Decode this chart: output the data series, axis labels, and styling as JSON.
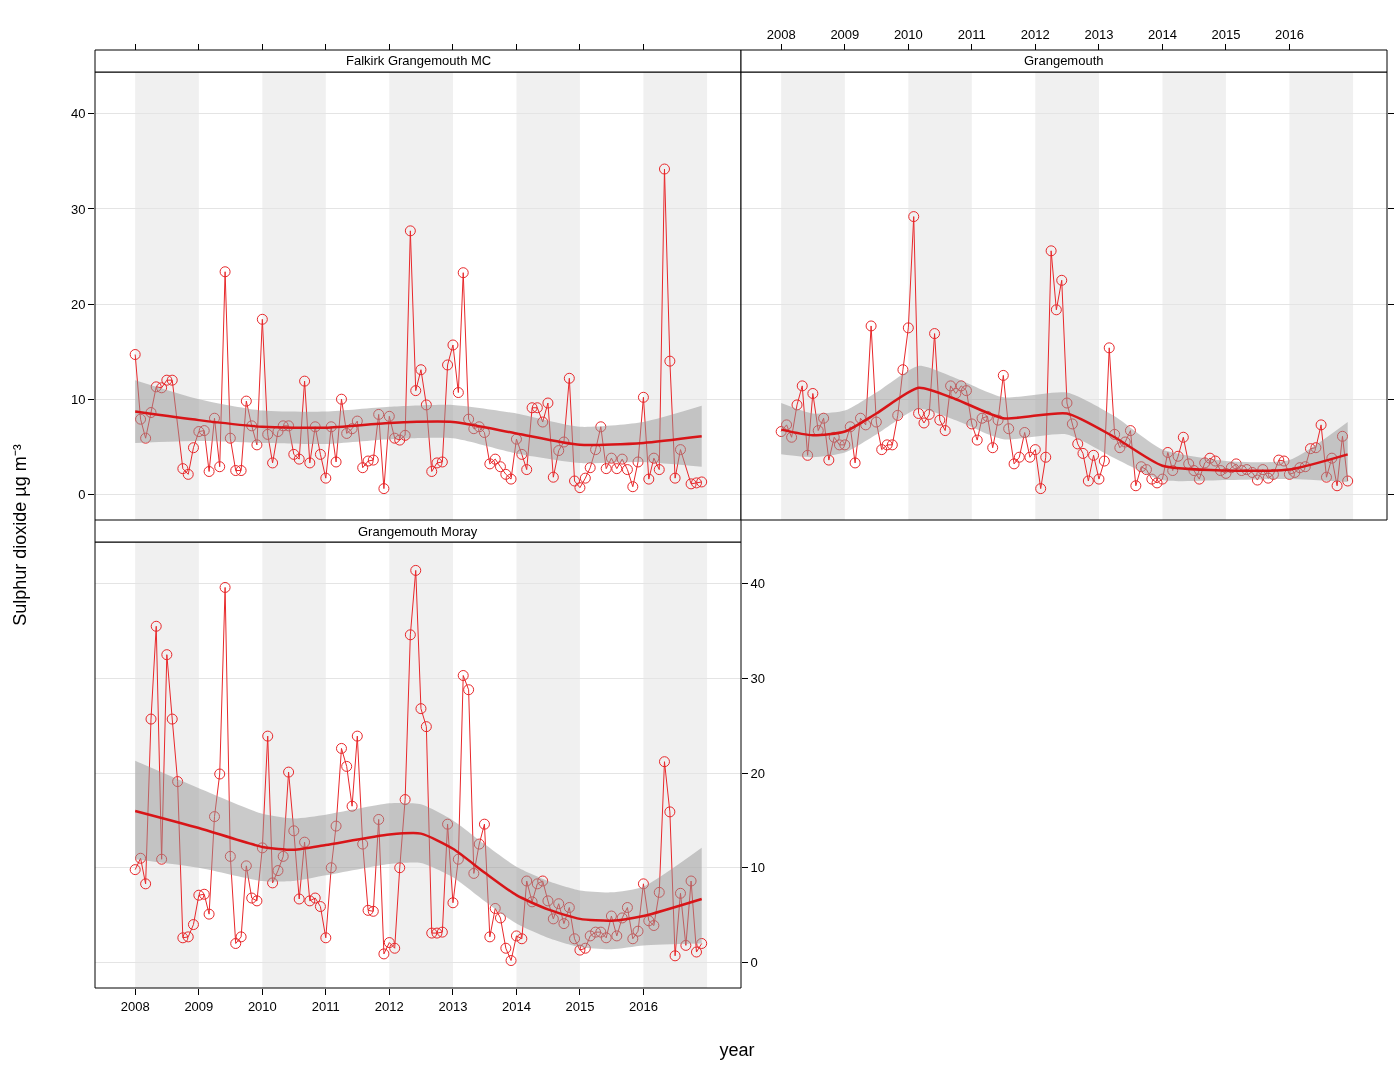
{
  "chart_data": [
    {
      "type": "line",
      "title": "Falkirk Grangemouth MC",
      "ylabel": "Sulphur dioxide µg m⁻³",
      "grid": "y",
      "tick_labels": "y",
      "xlim": [
        "2007-05-15",
        "2017-07-15"
      ],
      "xticks": [
        "2008",
        "2009",
        "2010",
        "2011",
        "2012",
        "2013",
        "2014",
        "2015",
        "2016"
      ],
      "ylim": [
        -2.7,
        44.4
      ],
      "yticks": [
        0,
        10,
        20,
        30,
        40
      ],
      "bands": [
        {
          "axis": "x",
          "from": "2008",
          "to": "2009",
          "color": "#f0f0f0"
        },
        {
          "axis": "x",
          "from": "2010",
          "to": "2011",
          "color": "#f0f0f0"
        },
        {
          "axis": "x",
          "from": "2012",
          "to": "2013",
          "color": "#f0f0f0"
        },
        {
          "axis": "x",
          "from": "2014",
          "to": "2015",
          "color": "#f0f0f0"
        },
        {
          "axis": "x",
          "from": "2016",
          "to": "2017",
          "color": "#f0f0f0"
        }
      ],
      "x": [
        "2008-01",
        "2008-02",
        "2008-03",
        "2008-04",
        "2008-05",
        "2008-06",
        "2008-07",
        "2008-08",
        "2008-09",
        "2008-10",
        "2008-11",
        "2008-12",
        "2009-01",
        "2009-02",
        "2009-03",
        "2009-04",
        "2009-05",
        "2009-06",
        "2009-07",
        "2009-08",
        "2009-09",
        "2009-10",
        "2009-11",
        "2009-12",
        "2010-01",
        "2010-02",
        "2010-03",
        "2010-04",
        "2010-05",
        "2010-06",
        "2010-07",
        "2010-08",
        "2010-09",
        "2010-10",
        "2010-11",
        "2010-12",
        "2011-01",
        "2011-02",
        "2011-03",
        "2011-04",
        "2011-05",
        "2011-06",
        "2011-07",
        "2011-08",
        "2011-09",
        "2011-10",
        "2011-11",
        "2011-12",
        "2012-01",
        "2012-02",
        "2012-03",
        "2012-04",
        "2012-05",
        "2012-06",
        "2012-07",
        "2012-08",
        "2012-09",
        "2012-10",
        "2012-11",
        "2012-12",
        "2013-01",
        "2013-02",
        "2013-03",
        "2013-04",
        "2013-05",
        "2013-06",
        "2013-07",
        "2013-08",
        "2013-09",
        "2013-10",
        "2013-11",
        "2013-12",
        "2014-01",
        "2014-02",
        "2014-03",
        "2014-04",
        "2014-05",
        "2014-06",
        "2014-07",
        "2014-08",
        "2014-09",
        "2014-10",
        "2014-11",
        "2014-12",
        "2015-01",
        "2015-02",
        "2015-03",
        "2015-04",
        "2015-05",
        "2015-06",
        "2015-07",
        "2015-08",
        "2015-09",
        "2015-10",
        "2015-11",
        "2015-12",
        "2016-01",
        "2016-02",
        "2016-03",
        "2016-04",
        "2016-05",
        "2016-06",
        "2016-07",
        "2016-08",
        "2016-09",
        "2016-10",
        "2016-11",
        "2016-12"
      ],
      "series": [
        {
          "color": "#e8282b",
          "marker": "circle",
          "values": [
            14.7,
            7.9,
            5.9,
            8.6,
            11.3,
            11.2,
            12.0,
            12.0,
            null,
            2.7,
            2.1,
            4.9,
            6.6,
            6.7,
            2.4,
            8.0,
            2.9,
            23.4,
            5.9,
            2.5,
            2.5,
            9.8,
            7.2,
            5.2,
            18.4,
            6.3,
            3.3,
            6.6,
            7.2,
            7.2,
            4.2,
            3.7,
            11.9,
            3.3,
            7.1,
            4.2,
            1.7,
            7.1,
            3.4,
            10.0,
            6.4,
            6.9,
            7.7,
            2.8,
            3.5,
            3.6,
            8.4,
            0.6,
            8.2,
            5.9,
            5.7,
            6.2,
            27.7,
            10.9,
            13.1,
            9.4,
            2.4,
            3.3,
            3.4,
            13.6,
            15.7,
            10.7,
            23.3,
            7.9,
            6.9,
            7.1,
            6.5,
            3.2,
            3.7,
            2.9,
            2.1,
            1.6,
            5.8,
            4.2,
            2.6,
            9.1,
            9.1,
            7.6,
            9.6,
            1.8,
            4.6,
            5.5,
            12.2,
            1.4,
            0.7,
            1.7,
            2.8,
            4.7,
            7.1,
            2.7,
            3.8,
            2.7,
            3.7,
            2.6,
            0.8,
            3.4,
            10.2,
            1.6,
            3.8,
            2.6,
            34.2,
            14.0,
            1.7,
            4.7,
            null,
            1.1,
            1.2,
            1.3
          ]
        },
        {
          "color": "#d81518",
          "marker": "none",
          "x": [
            "2008-01",
            "2009-01",
            "2010-01",
            "2011-01",
            "2012-01",
            "2013-01",
            "2014-01",
            "2015-01",
            "2016-01",
            "2016-12"
          ],
          "values": [
            8.7,
            7.8,
            7.1,
            7.0,
            7.5,
            7.6,
            6.4,
            5.2,
            5.4,
            6.1
          ],
          "lower": [
            5.4,
            5.6,
            5.4,
            5.3,
            5.8,
            5.9,
            4.3,
            3.3,
            3.4,
            2.9
          ],
          "upper": [
            12.0,
            10.0,
            8.8,
            8.7,
            9.2,
            9.4,
            8.5,
            7.1,
            7.6,
            9.3
          ]
        }
      ]
    },
    {
      "type": "line",
      "title": "Grangemouth",
      "grid": "y",
      "tick_labels": "x",
      "xlim": [
        "2007-05-15",
        "2017-07-15"
      ],
      "xticks": [
        "2008",
        "2009",
        "2010",
        "2011",
        "2012",
        "2013",
        "2014",
        "2015",
        "2016"
      ],
      "ylim": [
        -2.7,
        44.4
      ],
      "yticks": [
        0,
        10,
        20,
        30,
        40
      ],
      "bands": [
        {
          "axis": "x",
          "from": "2008",
          "to": "2009",
          "color": "#f0f0f0"
        },
        {
          "axis": "x",
          "from": "2010",
          "to": "2011",
          "color": "#f0f0f0"
        },
        {
          "axis": "x",
          "from": "2012",
          "to": "2013",
          "color": "#f0f0f0"
        },
        {
          "axis": "x",
          "from": "2014",
          "to": "2015",
          "color": "#f0f0f0"
        },
        {
          "axis": "x",
          "from": "2016",
          "to": "2017",
          "color": "#f0f0f0"
        }
      ],
      "x": [
        "2008-01",
        "2008-02",
        "2008-03",
        "2008-04",
        "2008-05",
        "2008-06",
        "2008-07",
        "2008-08",
        "2008-09",
        "2008-10",
        "2008-11",
        "2008-12",
        "2009-01",
        "2009-02",
        "2009-03",
        "2009-04",
        "2009-05",
        "2009-06",
        "2009-07",
        "2009-08",
        "2009-09",
        "2009-10",
        "2009-11",
        "2009-12",
        "2010-01",
        "2010-02",
        "2010-03",
        "2010-04",
        "2010-05",
        "2010-06",
        "2010-07",
        "2010-08",
        "2010-09",
        "2010-10",
        "2010-11",
        "2010-12",
        "2011-01",
        "2011-02",
        "2011-03",
        "2011-04",
        "2011-05",
        "2011-06",
        "2011-07",
        "2011-08",
        "2011-09",
        "2011-10",
        "2011-11",
        "2011-12",
        "2012-01",
        "2012-02",
        "2012-03",
        "2012-04",
        "2012-05",
        "2012-06",
        "2012-07",
        "2012-08",
        "2012-09",
        "2012-10",
        "2012-11",
        "2012-12",
        "2013-01",
        "2013-02",
        "2013-03",
        "2013-04",
        "2013-05",
        "2013-06",
        "2013-07",
        "2013-08",
        "2013-09",
        "2013-10",
        "2013-11",
        "2013-12",
        "2014-01",
        "2014-02",
        "2014-03",
        "2014-04",
        "2014-05",
        "2014-06",
        "2014-07",
        "2014-08",
        "2014-09",
        "2014-10",
        "2014-11",
        "2014-12",
        "2015-01",
        "2015-02",
        "2015-03",
        "2015-04",
        "2015-05",
        "2015-06",
        "2015-07",
        "2015-08",
        "2015-09",
        "2015-10",
        "2015-11",
        "2015-12",
        "2016-01",
        "2016-02",
        "2016-03",
        "2016-04",
        "2016-05",
        "2016-06",
        "2016-07",
        "2016-08",
        "2016-09",
        "2016-10",
        "2016-11",
        "2016-12"
      ],
      "series": [
        {
          "color": "#e8282b",
          "marker": "circle",
          "values": [
            6.6,
            7.3,
            6.0,
            9.4,
            11.4,
            4.1,
            10.6,
            6.7,
            8.0,
            3.6,
            6.0,
            5.2,
            5.2,
            7.1,
            3.3,
            8.0,
            7.3,
            17.7,
            7.6,
            4.7,
            5.2,
            5.2,
            8.3,
            13.1,
            17.5,
            29.2,
            8.5,
            7.5,
            8.4,
            16.9,
            7.8,
            6.7,
            11.4,
            10.6,
            11.4,
            10.9,
            7.4,
            5.7,
            8.0,
            8.2,
            4.9,
            7.8,
            12.5,
            6.9,
            3.2,
            3.9,
            6.5,
            3.9,
            4.7,
            0.6,
            3.9,
            25.6,
            19.4,
            22.5,
            9.6,
            7.4,
            5.3,
            4.3,
            1.4,
            4.1,
            1.6,
            3.5,
            15.4,
            6.3,
            4.9,
            5.5,
            6.7,
            0.9,
            2.9,
            2.6,
            1.6,
            1.2,
            1.6,
            4.4,
            2.5,
            4.0,
            6.0,
            3.2,
            2.5,
            1.6,
            3.3,
            3.8,
            3.5,
            2.5,
            2.2,
            2.8,
            3.2,
            2.5,
            2.6,
            2.3,
            1.5,
            2.6,
            1.7,
            2.1,
            3.6,
            3.5,
            2.1,
            2.3,
            2.8,
            2.9,
            4.8,
            4.9,
            7.3,
            1.8,
            3.8,
            0.9,
            6.1,
            1.4
          ]
        },
        {
          "color": "#d81518",
          "marker": "none",
          "x": [
            "2008-01",
            "2008-07",
            "2009-01",
            "2009-07",
            "2010-03",
            "2010-10",
            "2011-07",
            "2012-07",
            "2013-04",
            "2014-01",
            "2015-01",
            "2016-01",
            "2016-12"
          ],
          "values": [
            6.8,
            6.2,
            6.6,
            8.5,
            11.2,
            10.0,
            8.0,
            8.5,
            6.0,
            3.0,
            2.5,
            2.6,
            4.2
          ],
          "lower": [
            4.2,
            3.9,
            4.4,
            6.3,
            9.0,
            7.8,
            5.8,
            6.3,
            3.8,
            1.5,
            1.5,
            1.6,
            1.3
          ],
          "upper": [
            9.6,
            8.5,
            8.8,
            10.7,
            13.5,
            12.2,
            10.2,
            10.7,
            8.2,
            4.7,
            3.5,
            3.6,
            7.6
          ]
        }
      ]
    },
    {
      "type": "line",
      "title": "Grangemouth Moray",
      "xlabel": "year",
      "grid": "y",
      "xlim": [
        "2007-05-15",
        "2017-07-15"
      ],
      "xticks": [
        "2008",
        "2009",
        "2010",
        "2011",
        "2012",
        "2013",
        "2014",
        "2015",
        "2016"
      ],
      "ylim": [
        -2.7,
        44.4
      ],
      "yticks": [
        0,
        10,
        20,
        30,
        40
      ],
      "bands": [
        {
          "axis": "x",
          "from": "2008",
          "to": "2009",
          "color": "#f0f0f0"
        },
        {
          "axis": "x",
          "from": "2010",
          "to": "2011",
          "color": "#f0f0f0"
        },
        {
          "axis": "x",
          "from": "2012",
          "to": "2013",
          "color": "#f0f0f0"
        },
        {
          "axis": "x",
          "from": "2014",
          "to": "2015",
          "color": "#f0f0f0"
        },
        {
          "axis": "x",
          "from": "2016",
          "to": "2017",
          "color": "#f0f0f0"
        }
      ],
      "x": [
        "2008-01",
        "2008-02",
        "2008-03",
        "2008-04",
        "2008-05",
        "2008-06",
        "2008-07",
        "2008-08",
        "2008-09",
        "2008-10",
        "2008-11",
        "2008-12",
        "2009-01",
        "2009-02",
        "2009-03",
        "2009-04",
        "2009-05",
        "2009-06",
        "2009-07",
        "2009-08",
        "2009-09",
        "2009-10",
        "2009-11",
        "2009-12",
        "2010-01",
        "2010-02",
        "2010-03",
        "2010-04",
        "2010-05",
        "2010-06",
        "2010-07",
        "2010-08",
        "2010-09",
        "2010-10",
        "2010-11",
        "2010-12",
        "2011-01",
        "2011-02",
        "2011-03",
        "2011-04",
        "2011-05",
        "2011-06",
        "2011-07",
        "2011-08",
        "2011-09",
        "2011-10",
        "2011-11",
        "2011-12",
        "2012-01",
        "2012-02",
        "2012-03",
        "2012-04",
        "2012-05",
        "2012-06",
        "2012-07",
        "2012-08",
        "2012-09",
        "2012-10",
        "2012-11",
        "2012-12",
        "2013-01",
        "2013-02",
        "2013-03",
        "2013-04",
        "2013-05",
        "2013-06",
        "2013-07",
        "2013-08",
        "2013-09",
        "2013-10",
        "2013-11",
        "2013-12",
        "2014-01",
        "2014-02",
        "2014-03",
        "2014-04",
        "2014-05",
        "2014-06",
        "2014-07",
        "2014-08",
        "2014-09",
        "2014-10",
        "2014-11",
        "2014-12",
        "2015-01",
        "2015-02",
        "2015-03",
        "2015-04",
        "2015-05",
        "2015-06",
        "2015-07",
        "2015-08",
        "2015-09",
        "2015-10",
        "2015-11",
        "2015-12",
        "2016-01",
        "2016-02",
        "2016-03",
        "2016-04",
        "2016-05",
        "2016-06",
        "2016-07",
        "2016-08",
        "2016-09",
        "2016-10",
        "2016-11",
        "2016-12"
      ],
      "series": [
        {
          "color": "#e8282b",
          "marker": "circle",
          "values": [
            9.8,
            11.0,
            8.3,
            25.7,
            35.5,
            10.9,
            32.5,
            25.7,
            19.1,
            2.6,
            2.7,
            4.0,
            7.1,
            7.2,
            5.1,
            15.4,
            19.9,
            39.6,
            11.2,
            2.0,
            2.7,
            10.2,
            6.8,
            6.5,
            12.1,
            23.9,
            8.4,
            9.7,
            11.2,
            20.1,
            13.9,
            6.7,
            12.7,
            6.5,
            6.8,
            5.9,
            2.6,
            10.0,
            14.4,
            22.6,
            20.7,
            16.5,
            23.9,
            12.5,
            5.5,
            5.4,
            15.1,
            0.9,
            2.1,
            1.5,
            10.0,
            17.2,
            34.6,
            41.4,
            26.8,
            24.9,
            3.1,
            3.1,
            3.2,
            14.6,
            6.3,
            10.9,
            30.3,
            28.8,
            9.4,
            12.5,
            14.6,
            2.7,
            5.7,
            4.7,
            1.5,
            0.2,
            2.8,
            2.5,
            8.6,
            6.4,
            8.3,
            8.6,
            6.5,
            4.6,
            6.2,
            4.1,
            5.8,
            2.5,
            1.3,
            1.5,
            2.8,
            3.2,
            3.2,
            2.6,
            4.9,
            2.8,
            4.7,
            5.8,
            2.5,
            3.3,
            8.3,
            4.4,
            3.9,
            7.4,
            21.2,
            15.9,
            0.7,
            7.3,
            1.8,
            8.6,
            1.1,
            2.0
          ]
        },
        {
          "color": "#d81518",
          "marker": "none",
          "x": [
            "2008-01",
            "2009-01",
            "2010-01",
            "2010-07",
            "2011-01",
            "2012-01",
            "2012-07",
            "2013-01",
            "2013-07",
            "2014-01",
            "2014-07",
            "2015-01",
            "2015-07",
            "2016-01",
            "2016-12"
          ],
          "values": [
            16.0,
            14.2,
            12.2,
            11.9,
            12.4,
            13.5,
            13.6,
            12.0,
            9.5,
            7.1,
            5.6,
            4.6,
            4.4,
            4.9,
            6.7
          ],
          "lower": [
            10.9,
            10.0,
            8.6,
            8.6,
            9.2,
            10.4,
            10.5,
            9.0,
            6.5,
            4.1,
            2.6,
            1.6,
            1.4,
            1.8,
            2.0
          ],
          "upper": [
            21.3,
            18.4,
            15.7,
            15.2,
            15.6,
            16.8,
            16.7,
            15.0,
            12.5,
            10.1,
            8.6,
            7.6,
            7.4,
            8.0,
            12.1
          ]
        }
      ]
    }
  ]
}
